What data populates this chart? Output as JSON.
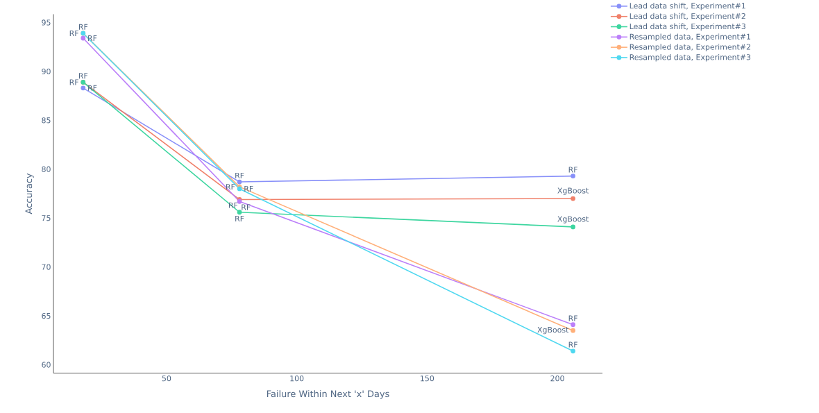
{
  "chart_data": {
    "type": "line",
    "xlabel": "Failure Within Next 'x' Days",
    "ylabel": "Accuracy",
    "x": [
      18,
      78,
      206
    ],
    "series": [
      {
        "name": "Lead data shift, Experiment#1",
        "color": "#8890f9",
        "values": [
          88.3,
          78.7,
          79.3
        ],
        "value_labels": [
          "RF",
          "RF",
          "RF"
        ]
      },
      {
        "name": "Lead data shift, Experiment#2",
        "color": "#f0806a",
        "values": [
          88.9,
          76.9,
          77.0
        ],
        "value_labels": [
          "RF",
          "RF",
          "XgBoost"
        ]
      },
      {
        "name": "Lead data shift, Experiment#3",
        "color": "#3ed6a0",
        "values": [
          88.9,
          75.6,
          74.1
        ],
        "value_labels": [
          "RF",
          "RF",
          "XgBoost"
        ]
      },
      {
        "name": "Resampled data, Experiment#1",
        "color": "#bb7ff9",
        "values": [
          93.4,
          76.7,
          64.1
        ],
        "value_labels": [
          "RF",
          "RF",
          "RF"
        ]
      },
      {
        "name": "Resampled data, Experiment#2",
        "color": "#ffb07a",
        "values": [
          93.9,
          78.2,
          63.5
        ],
        "value_labels": [
          "RF",
          "RF",
          "XgBoost"
        ]
      },
      {
        "name": "Resampled data, Experiment#3",
        "color": "#50d8f0",
        "values": [
          93.9,
          78.0,
          61.4
        ],
        "value_labels": [
          "RF",
          "RF",
          "RF"
        ]
      }
    ],
    "xlim": [
      6.6,
      217.3
    ],
    "ylim": [
      59.15,
      95.85
    ],
    "xticks": [
      50,
      100,
      150,
      200
    ],
    "yticks": [
      60,
      65,
      70,
      75,
      80,
      85,
      90,
      95
    ],
    "grid": false,
    "legend": "top right",
    "marker": "circle",
    "line_style": "solid"
  }
}
